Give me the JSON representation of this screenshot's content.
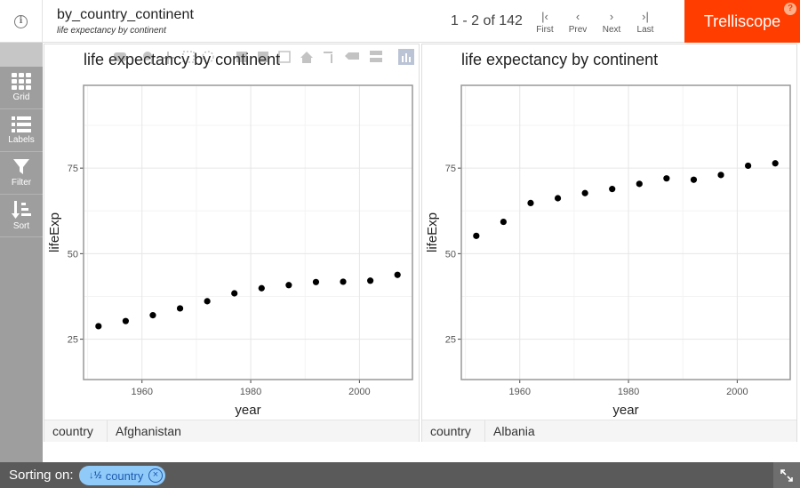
{
  "header": {
    "display_name": "by_country_continent",
    "display_desc": "life expectancy by continent",
    "page_info": "1 - 2 of 142",
    "nav": [
      {
        "label": "First",
        "icon": "first-page-icon",
        "glyph": "|‹"
      },
      {
        "label": "Prev",
        "icon": "chevron-left-icon",
        "glyph": "‹"
      },
      {
        "label": "Next",
        "icon": "chevron-right-icon",
        "glyph": "›"
      },
      {
        "label": "Last",
        "icon": "last-page-icon",
        "glyph": "›|"
      }
    ],
    "brand": "Trelliscope",
    "help_glyph": "?",
    "info_glyph": "i"
  },
  "sidebar": {
    "items": [
      {
        "label": "Grid",
        "icon": "grid-icon"
      },
      {
        "label": "Labels",
        "icon": "list-icon"
      },
      {
        "label": "Filter",
        "icon": "filter-icon"
      },
      {
        "label": "Sort",
        "icon": "sort-icon"
      }
    ]
  },
  "panels": [
    {
      "cog_name": "country",
      "cog_value": "Afghanistan"
    },
    {
      "cog_name": "country",
      "cog_value": "Albania"
    }
  ],
  "footer": {
    "sort_label": "Sorting on:",
    "sort_chip": "country",
    "sort_chip_icon": "sort-ascending-icon",
    "expand_icon": "expand-icon"
  },
  "colors": {
    "brand": "#ff3d00",
    "sidebar": "#9e9e9e",
    "footer": "#5a5a5a",
    "chip": "#90caf9"
  },
  "chart_data": [
    {
      "type": "scatter",
      "title": "life expectancy by continent",
      "xlabel": "year",
      "ylabel": "lifeExp",
      "xlim": [
        1949.25,
        2009.75
      ],
      "ylim": [
        13.2,
        99.2
      ],
      "xticks": [
        1960,
        1980,
        2000
      ],
      "yticks": [
        25,
        50,
        75
      ],
      "grid": true,
      "x": [
        1952,
        1957,
        1962,
        1967,
        1972,
        1977,
        1982,
        1987,
        1992,
        1997,
        2002,
        2007
      ],
      "y": [
        28.8,
        30.3,
        32.0,
        34.0,
        36.1,
        38.4,
        39.9,
        40.8,
        41.7,
        41.8,
        42.1,
        43.8
      ]
    },
    {
      "type": "scatter",
      "title": "life expectancy by continent",
      "xlabel": "year",
      "ylabel": "lifeExp",
      "xlim": [
        1949.25,
        2009.75
      ],
      "ylim": [
        13.2,
        99.2
      ],
      "xticks": [
        1960,
        1980,
        2000
      ],
      "yticks": [
        25,
        50,
        75
      ],
      "grid": true,
      "x": [
        1952,
        1957,
        1962,
        1967,
        1972,
        1977,
        1982,
        1987,
        1992,
        1997,
        2002,
        2007
      ],
      "y": [
        55.2,
        59.3,
        64.8,
        66.2,
        67.7,
        68.9,
        70.4,
        72.0,
        71.6,
        73.0,
        75.7,
        76.4
      ]
    }
  ]
}
